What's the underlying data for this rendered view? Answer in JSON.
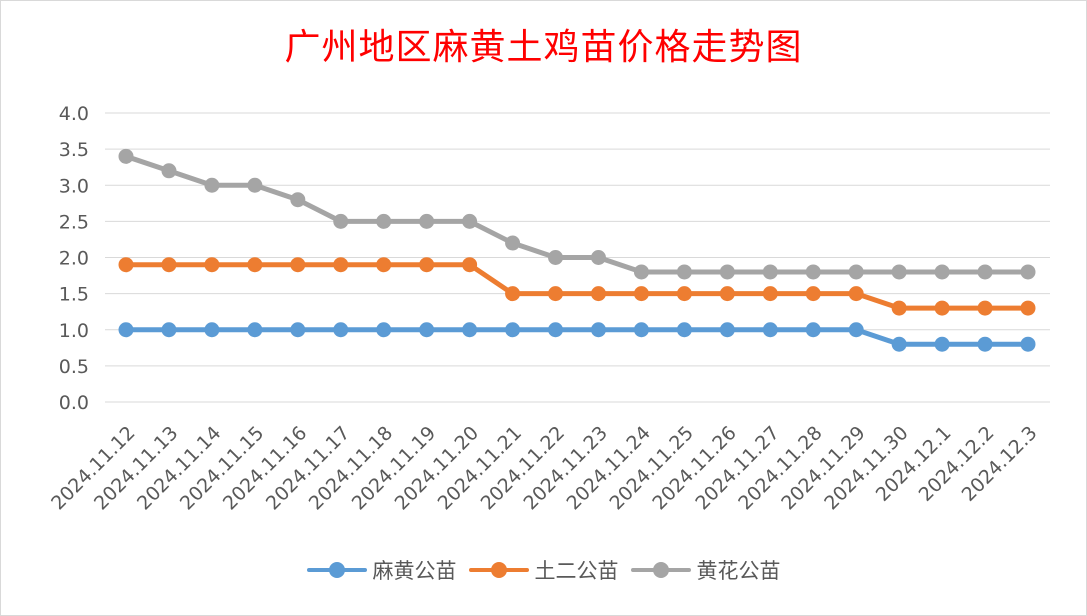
{
  "chart_data": {
    "type": "line",
    "title": "广州地区麻黄土鸡苗价格走势图",
    "xlabel": "",
    "ylabel": "",
    "ylim": [
      0,
      4
    ],
    "yticks": [
      "0.0",
      "0.5",
      "1.0",
      "1.5",
      "2.0",
      "2.5",
      "3.0",
      "3.5",
      "4.0"
    ],
    "grid": "horizontal",
    "legend_position": "bottom",
    "categories": [
      "2024.11.12",
      "2024.11.13",
      "2024.11.14",
      "2024.11.15",
      "2024.11.16",
      "2024.11.17",
      "2024.11.18",
      "2024.11.19",
      "2024.11.20",
      "2024.11.21",
      "2024.11.22",
      "2024.11.23",
      "2024.11.24",
      "2024.11.25",
      "2024.11.26",
      "2024.11.27",
      "2024.11.28",
      "2024.11.29",
      "2024.11.30",
      "2024.12.1",
      "2024.12.2",
      "2024.12.3"
    ],
    "series": [
      {
        "name": "麻黄公苗",
        "color": "#5b9bd5",
        "values": [
          1.0,
          1.0,
          1.0,
          1.0,
          1.0,
          1.0,
          1.0,
          1.0,
          1.0,
          1.0,
          1.0,
          1.0,
          1.0,
          1.0,
          1.0,
          1.0,
          1.0,
          1.0,
          0.8,
          0.8,
          0.8,
          0.8
        ]
      },
      {
        "name": "土二公苗",
        "color": "#ed7d31",
        "values": [
          1.9,
          1.9,
          1.9,
          1.9,
          1.9,
          1.9,
          1.9,
          1.9,
          1.9,
          1.5,
          1.5,
          1.5,
          1.5,
          1.5,
          1.5,
          1.5,
          1.5,
          1.5,
          1.3,
          1.3,
          1.3,
          1.3
        ]
      },
      {
        "name": "黄花公苗",
        "color": "#a5a5a5",
        "values": [
          3.4,
          3.2,
          3.0,
          3.0,
          2.8,
          2.5,
          2.5,
          2.5,
          2.5,
          2.2,
          2.0,
          2.0,
          1.8,
          1.8,
          1.8,
          1.8,
          1.8,
          1.8,
          1.8,
          1.8,
          1.8,
          1.8
        ]
      }
    ]
  }
}
